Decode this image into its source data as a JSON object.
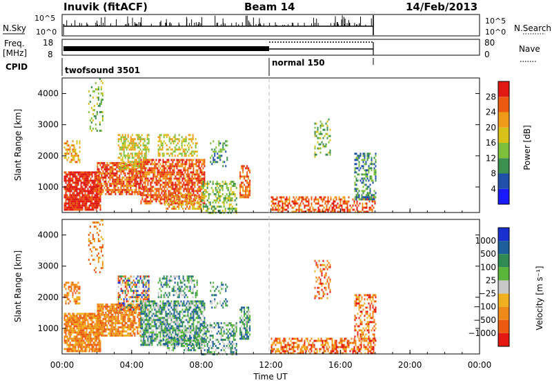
{
  "header": {
    "station": "Inuvik (fitACF)",
    "beam": "Beam 14",
    "date": "14/Feb/2013"
  },
  "left_labels": {
    "nsky": "N.Sky",
    "freq_line1": "Freq.",
    "freq_line2": "[MHz]",
    "cpid": "CPID"
  },
  "right_labels": {
    "nsearch": "N.Search",
    "nave": "Nave"
  },
  "noise_panel": {
    "left_ticks": [
      "10^5",
      "10^0"
    ],
    "right_ticks": [
      "10^5",
      "10^0"
    ]
  },
  "freq_panel": {
    "left_ticks": [
      "18",
      "8"
    ],
    "right_ticks": [
      "80",
      "0"
    ]
  },
  "cpid_panel": {
    "modes": [
      {
        "label": "twofsound 3501"
      },
      {
        "label": "normal 150"
      }
    ]
  },
  "chart_data": [
    {
      "type": "heatmap",
      "name": "power",
      "ylabel": "Slant Range [km]",
      "yticks": [
        "1000",
        "2000",
        "3000",
        "4000"
      ],
      "colorbar_label": "Power [dB]",
      "colorbar_ticks": [
        "4",
        "8",
        "12",
        "16",
        "20",
        "24",
        "28"
      ],
      "colors": [
        "#1a1aff",
        "#1f4fa8",
        "#3b8f4f",
        "#7fc03a",
        "#d8c21a",
        "#f09a1a",
        "#ec5a12",
        "#e01a12"
      ]
    },
    {
      "type": "heatmap",
      "name": "velocity",
      "ylabel": "Slant Range [km]",
      "yticks": [
        "1000",
        "2000",
        "3000",
        "4000"
      ],
      "colorbar_label": "Velocity [m s⁻¹]",
      "colorbar_ticks": [
        "1000",
        "500",
        "100",
        "25",
        "−25",
        "−100",
        "−500",
        "−1000"
      ],
      "colors": [
        "#1a2fd0",
        "#1d5f9a",
        "#2f8a54",
        "#5ab63a",
        "#c8c8c8",
        "#f0b020",
        "#ef8a1a",
        "#ec5a12",
        "#e41a12"
      ]
    }
  ],
  "time_axis": {
    "label": "Time UT",
    "ticks": [
      "00:00",
      "04:00",
      "08:00",
      "12:00",
      "16:00",
      "20:00",
      "00:00"
    ]
  }
}
